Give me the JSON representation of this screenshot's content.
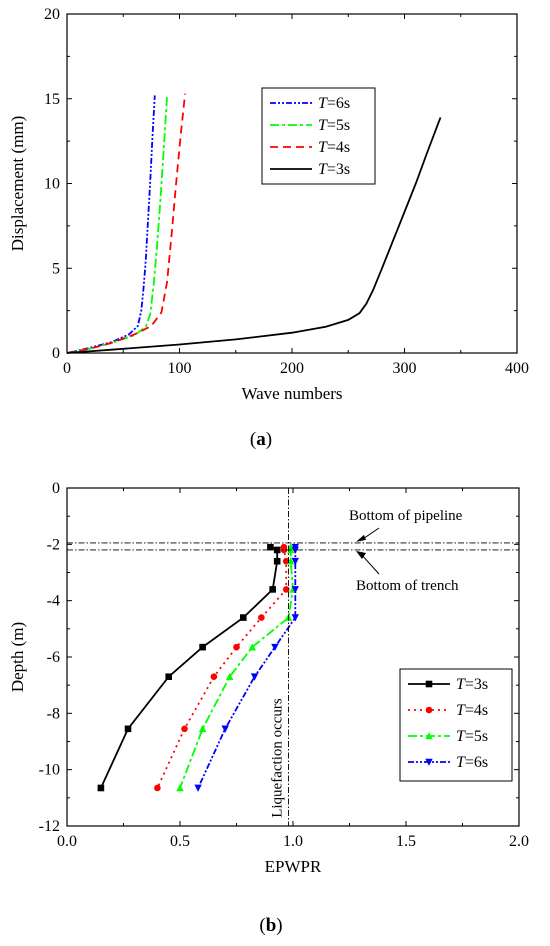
{
  "panels": [
    {
      "label_open": "(",
      "label_letter": "a",
      "label_close": ")"
    },
    {
      "label_open": "(",
      "label_letter": "b",
      "label_close": ")"
    }
  ],
  "chart_data": [
    {
      "type": "line",
      "title": "",
      "xlabel": "Wave numbers",
      "ylabel": "Displacement (mm)",
      "xlim": [
        0,
        400
      ],
      "ylim": [
        0,
        20
      ],
      "xticks": [
        0,
        100,
        200,
        300,
        400
      ],
      "yticks": [
        0,
        5,
        10,
        15,
        20
      ],
      "grid": false,
      "legend": "upper-middle",
      "series": [
        {
          "name_italic": "T",
          "name_rest": "=6s",
          "color": "#0000ff",
          "dash": "6,2,2,2,2,2",
          "x": [
            0,
            20,
            40,
            55,
            63,
            66,
            68,
            70,
            72,
            74,
            76,
            78
          ],
          "y": [
            0,
            0.3,
            0.65,
            1.1,
            1.6,
            2.5,
            3.8,
            5.5,
            7.8,
            10.2,
            12.8,
            15.2
          ]
        },
        {
          "name_italic": "T",
          "name_rest": "=5s",
          "color": "#00ff00",
          "dash": "9,3,3,3",
          "x": [
            0,
            20,
            40,
            60,
            70,
            74,
            77,
            80,
            83,
            86,
            89
          ],
          "y": [
            0,
            0.25,
            0.6,
            1.05,
            1.55,
            2.3,
            4.0,
            6.3,
            9.0,
            12.1,
            15.2
          ]
        },
        {
          "name_italic": "T",
          "name_rest": "=4s",
          "color": "#ff0000",
          "dash": "8,5",
          "x": [
            0,
            20,
            40,
            60,
            75,
            84,
            89,
            93,
            97,
            101,
            105
          ],
          "y": [
            0,
            0.25,
            0.6,
            1.1,
            1.6,
            2.4,
            4.2,
            7.0,
            10.0,
            12.8,
            15.3
          ]
        },
        {
          "name_italic": "T",
          "name_rest": "=3s",
          "color": "#000000",
          "dash": "",
          "x": [
            0,
            50,
            100,
            150,
            200,
            230,
            250,
            260,
            266,
            272,
            280,
            295,
            310,
            320,
            332
          ],
          "y": [
            0,
            0.25,
            0.5,
            0.8,
            1.2,
            1.55,
            1.95,
            2.35,
            2.9,
            3.7,
            5.0,
            7.5,
            10.0,
            11.8,
            13.9
          ]
        }
      ]
    },
    {
      "type": "line",
      "title": "",
      "xlabel": "EPWPR",
      "ylabel": "Depth (m)",
      "xlim": [
        0.0,
        2.0
      ],
      "ylim": [
        -12,
        0
      ],
      "xticks": [
        "0.0",
        "0.5",
        "1.0",
        "1.5",
        "2.0"
      ],
      "yticks": [
        "0",
        "-2",
        "-4",
        "-6",
        "-8",
        "-10",
        "-12"
      ],
      "grid": false,
      "legend": "bottom-right",
      "annotations": {
        "pipeline": "Bottom of pipeline",
        "trench": "Bottom of trench",
        "liquefaction": "Liquefaction occurs",
        "pipeline_depth": -1.95,
        "trench_depth": -2.2,
        "liquefaction_epwpr": 0.98
      },
      "series": [
        {
          "name_italic": "T",
          "name_rest": "=3s",
          "color": "#000000",
          "dash": "",
          "marker": "square",
          "x": [
            0.9,
            0.93,
            0.93,
            0.91,
            0.78,
            0.6,
            0.45,
            0.27,
            0.15
          ],
          "y": [
            -2.1,
            -2.2,
            -2.6,
            -3.6,
            -4.6,
            -5.65,
            -6.7,
            -8.55,
            -10.65
          ]
        },
        {
          "name_italic": "T",
          "name_rest": "=4s",
          "color": "#ff0000",
          "dash": "2,4",
          "marker": "circle",
          "x": [
            0.96,
            0.96,
            0.97,
            0.97,
            0.86,
            0.75,
            0.65,
            0.52,
            0.4
          ],
          "y": [
            -2.1,
            -2.2,
            -2.6,
            -3.6,
            -4.6,
            -5.65,
            -6.7,
            -8.55,
            -10.65
          ]
        },
        {
          "name_italic": "T",
          "name_rest": "=5s",
          "color": "#00ff00",
          "dash": "9,3,3,3",
          "marker": "triangle-up",
          "x": [
            0.99,
            0.99,
            0.99,
            1.0,
            0.98,
            0.82,
            0.72,
            0.6,
            0.5
          ],
          "y": [
            -2.1,
            -2.2,
            -2.6,
            -3.6,
            -4.6,
            -5.65,
            -6.7,
            -8.55,
            -10.65
          ]
        },
        {
          "name_italic": "T",
          "name_rest": "=6s",
          "color": "#0000ff",
          "dash": "6,2,2,2,2,2",
          "marker": "triangle-down",
          "x": [
            1.01,
            1.01,
            1.01,
            1.01,
            1.01,
            0.92,
            0.83,
            0.7,
            0.58
          ],
          "y": [
            -2.1,
            -2.2,
            -2.6,
            -3.6,
            -4.6,
            -5.65,
            -6.7,
            -8.55,
            -10.65
          ]
        }
      ]
    }
  ]
}
